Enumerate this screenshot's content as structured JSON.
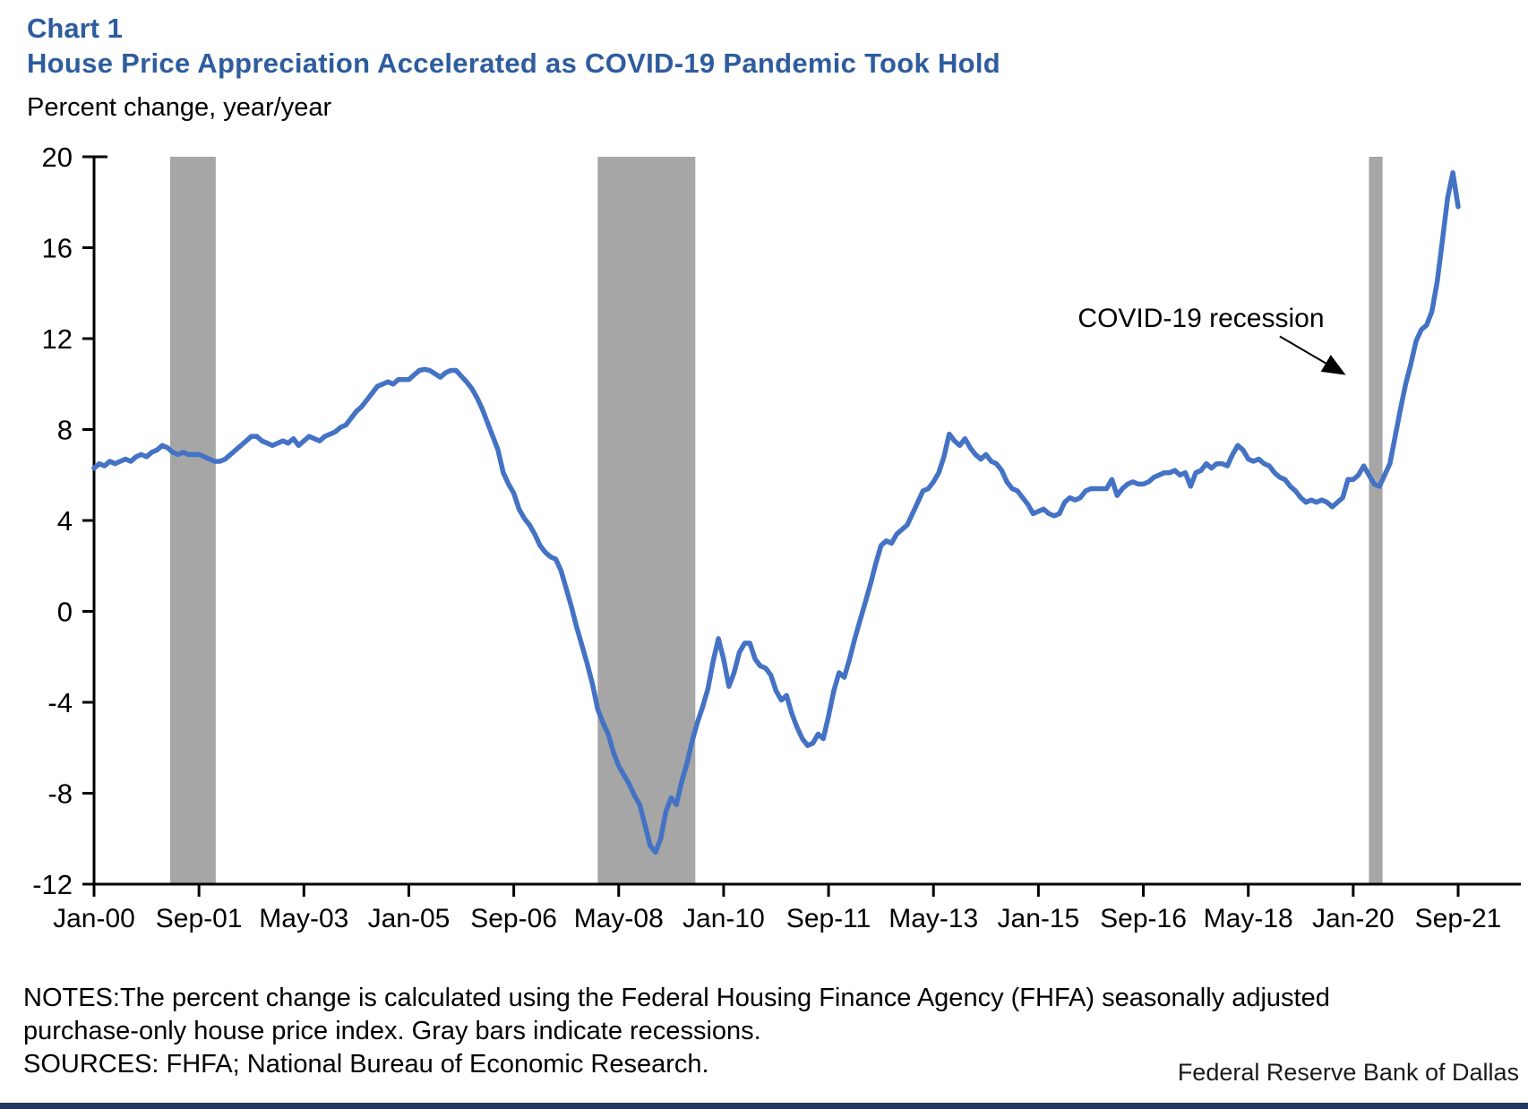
{
  "page": {
    "chart_label": "Chart 1",
    "title": "House Price Appreciation Accelerated as COVID-19 Pandemic Took Hold",
    "y_axis_note": "Percent change, year/year",
    "notes_line1": "NOTES:The percent change is calculated using the Federal Housing Finance Agency (FHFA) seasonally adjusted",
    "notes_line2": "purchase-only house price index. Gray bars indicate recessions.",
    "notes_line3": "SOURCES: FHFA; National Bureau of Economic Research.",
    "footer": "Federal Reserve Bank of Dallas"
  },
  "chart_data": {
    "type": "line",
    "title": "House Price Appreciation Accelerated as COVID-19 Pandemic Took Hold",
    "ylabel": "Percent change, year/year",
    "ylim": [
      -12,
      20
    ],
    "y_ticks": [
      20,
      16,
      12,
      8,
      4,
      0,
      -4,
      -8,
      -12
    ],
    "x_start": "Jan-2000",
    "x_end": "Sep-2021",
    "x_tick_labels": [
      "Jan-00",
      "Sep-01",
      "May-03",
      "Jan-05",
      "Sep-06",
      "May-08",
      "Jan-10",
      "Sep-11",
      "May-13",
      "Jan-15",
      "Sep-16",
      "May-18",
      "Jan-20",
      "Sep-21"
    ],
    "x_tick_interval_months": 20,
    "grid": false,
    "legend": "none",
    "series": [
      {
        "name": "FHFA purchase-only house price index, percent change year/year",
        "frequency": "monthly",
        "values": [
          6.3,
          6.5,
          6.4,
          6.6,
          6.5,
          6.6,
          6.7,
          6.6,
          6.8,
          6.9,
          6.8,
          7.0,
          7.1,
          7.3,
          7.2,
          7.0,
          6.9,
          7.0,
          6.9,
          6.9,
          6.9,
          6.8,
          6.7,
          6.6,
          6.6,
          6.7,
          6.9,
          7.1,
          7.3,
          7.5,
          7.7,
          7.7,
          7.5,
          7.4,
          7.3,
          7.4,
          7.5,
          7.4,
          7.6,
          7.3,
          7.5,
          7.7,
          7.6,
          7.5,
          7.7,
          7.8,
          7.9,
          8.1,
          8.2,
          8.5,
          8.8,
          9.0,
          9.3,
          9.6,
          9.9,
          10.0,
          10.1,
          10.0,
          10.2,
          10.2,
          10.2,
          10.4,
          10.6,
          10.65,
          10.6,
          10.45,
          10.3,
          10.5,
          10.6,
          10.6,
          10.35,
          10.1,
          9.8,
          9.4,
          8.9,
          8.3,
          7.7,
          7.1,
          6.1,
          5.6,
          5.2,
          4.5,
          4.1,
          3.8,
          3.4,
          2.9,
          2.6,
          2.4,
          2.3,
          1.8,
          1.0,
          0.2,
          -0.7,
          -1.5,
          -2.3,
          -3.2,
          -4.3,
          -4.9,
          -5.4,
          -6.2,
          -6.8,
          -7.2,
          -7.6,
          -8.1,
          -8.5,
          -9.4,
          -10.3,
          -10.6,
          -10.0,
          -8.8,
          -8.2,
          -8.5,
          -7.5,
          -6.7,
          -5.7,
          -4.9,
          -4.2,
          -3.4,
          -2.2,
          -1.2,
          -2.1,
          -3.3,
          -2.7,
          -1.8,
          -1.4,
          -1.4,
          -2.1,
          -2.4,
          -2.5,
          -2.8,
          -3.5,
          -3.9,
          -3.7,
          -4.5,
          -5.1,
          -5.6,
          -5.9,
          -5.8,
          -5.4,
          -5.6,
          -4.6,
          -3.5,
          -2.7,
          -2.9,
          -2.1,
          -1.2,
          -0.4,
          0.4,
          1.2,
          2.1,
          2.9,
          3.1,
          3.0,
          3.4,
          3.6,
          3.8,
          4.3,
          4.8,
          5.3,
          5.4,
          5.7,
          6.1,
          6.8,
          7.8,
          7.5,
          7.3,
          7.6,
          7.2,
          6.9,
          6.7,
          6.9,
          6.6,
          6.5,
          6.2,
          5.7,
          5.4,
          5.3,
          5.0,
          4.7,
          4.3,
          4.4,
          4.5,
          4.3,
          4.2,
          4.3,
          4.8,
          5.0,
          4.9,
          5.0,
          5.3,
          5.4,
          5.4,
          5.4,
          5.4,
          5.8,
          5.1,
          5.4,
          5.6,
          5.7,
          5.6,
          5.6,
          5.7,
          5.9,
          6.0,
          6.1,
          6.1,
          6.2,
          6.0,
          6.1,
          5.5,
          6.1,
          6.2,
          6.5,
          6.3,
          6.5,
          6.5,
          6.4,
          6.9,
          7.3,
          7.1,
          6.7,
          6.6,
          6.7,
          6.5,
          6.4,
          6.1,
          5.9,
          5.8,
          5.5,
          5.3,
          5.0,
          4.8,
          4.9,
          4.8,
          4.9,
          4.8,
          4.6,
          4.8,
          5.0,
          5.8,
          5.8,
          6.0,
          6.4,
          6.0,
          5.6,
          5.5,
          6.0,
          6.5,
          7.7,
          8.9,
          10.0,
          10.9,
          11.9,
          12.4,
          12.6,
          13.2,
          14.5,
          16.3,
          18.2,
          19.3,
          17.8
        ]
      }
    ],
    "recessions": [
      {
        "start_month_index": 14.5,
        "end_month_index": 23.2
      },
      {
        "start_month_index": 96.0,
        "end_month_index": 114.6
      },
      {
        "start_month_index": 243.0,
        "end_month_index": 245.6,
        "label": "COVID-19 recession"
      }
    ],
    "annotation": {
      "text": "COVID-19 recession",
      "text_month": 211,
      "text_value": 12.9,
      "arrow_from_month": 226,
      "arrow_from_value": 12.1,
      "arrow_to_month": 238.6,
      "arrow_to_value": 10.4
    },
    "colors": {
      "line": "#4472C4",
      "recession_band": "#A6A6A6",
      "title_blue": "#2E5C9E",
      "axis_black": "#000000",
      "footer_bar": "#1F3864"
    }
  }
}
